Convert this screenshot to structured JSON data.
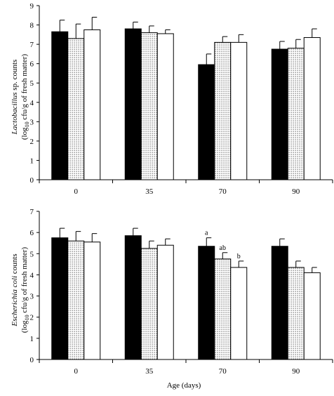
{
  "chart_data": [
    {
      "type": "bar",
      "categories": [
        "0",
        "35",
        "70",
        "90"
      ],
      "ylabel_line1_italic": "Lactobacillus",
      "ylabel_line1_rest": " sp. counts",
      "ylabel_line2_pre": "(log",
      "ylabel_line2_sub": "10",
      "ylabel_line2_post": " cfu/g of fresh matter)",
      "xlabel": "",
      "ylim": [
        0,
        9
      ],
      "yticks": [
        0,
        1,
        2,
        3,
        4,
        5,
        6,
        7,
        8,
        9
      ],
      "series": [
        {
          "fill": "solid",
          "values": [
            7.65,
            7.8,
            5.95,
            6.75
          ],
          "errors": [
            0.6,
            0.35,
            0.55,
            0.4
          ],
          "labels": [
            "",
            "",
            "",
            ""
          ]
        },
        {
          "fill": "dotted",
          "values": [
            7.3,
            7.6,
            7.1,
            6.8
          ],
          "errors": [
            0.75,
            0.35,
            0.3,
            0.45
          ],
          "labels": [
            "",
            "",
            "",
            ""
          ]
        },
        {
          "fill": "white",
          "values": [
            7.75,
            7.55,
            7.1,
            7.35
          ],
          "errors": [
            0.65,
            0.2,
            0.4,
            0.45
          ],
          "labels": [
            "",
            "",
            "",
            ""
          ]
        }
      ]
    },
    {
      "type": "bar",
      "categories": [
        "0",
        "35",
        "70",
        "90"
      ],
      "ylabel_line1_italic": "Escherichia coli",
      "ylabel_line1_rest": " counts",
      "ylabel_line2_pre": "(log",
      "ylabel_line2_sub": "10",
      "ylabel_line2_post": " cfu/g of fresh matter)",
      "xlabel": "Age (days)",
      "ylim": [
        0,
        7
      ],
      "yticks": [
        0,
        1,
        2,
        3,
        4,
        5,
        6,
        7
      ],
      "series": [
        {
          "fill": "solid",
          "values": [
            5.75,
            5.85,
            5.35,
            5.35
          ],
          "errors": [
            0.45,
            0.35,
            0.4,
            0.35
          ],
          "labels": [
            "",
            "",
            "a",
            ""
          ]
        },
        {
          "fill": "dotted",
          "values": [
            5.6,
            5.25,
            4.75,
            4.35
          ],
          "errors": [
            0.45,
            0.35,
            0.3,
            0.3
          ],
          "labels": [
            "",
            "",
            "ab",
            ""
          ]
        },
        {
          "fill": "white",
          "values": [
            5.55,
            5.4,
            4.35,
            4.1
          ],
          "errors": [
            0.4,
            0.3,
            0.3,
            0.25
          ],
          "labels": [
            "",
            "",
            "b",
            ""
          ]
        }
      ]
    }
  ]
}
